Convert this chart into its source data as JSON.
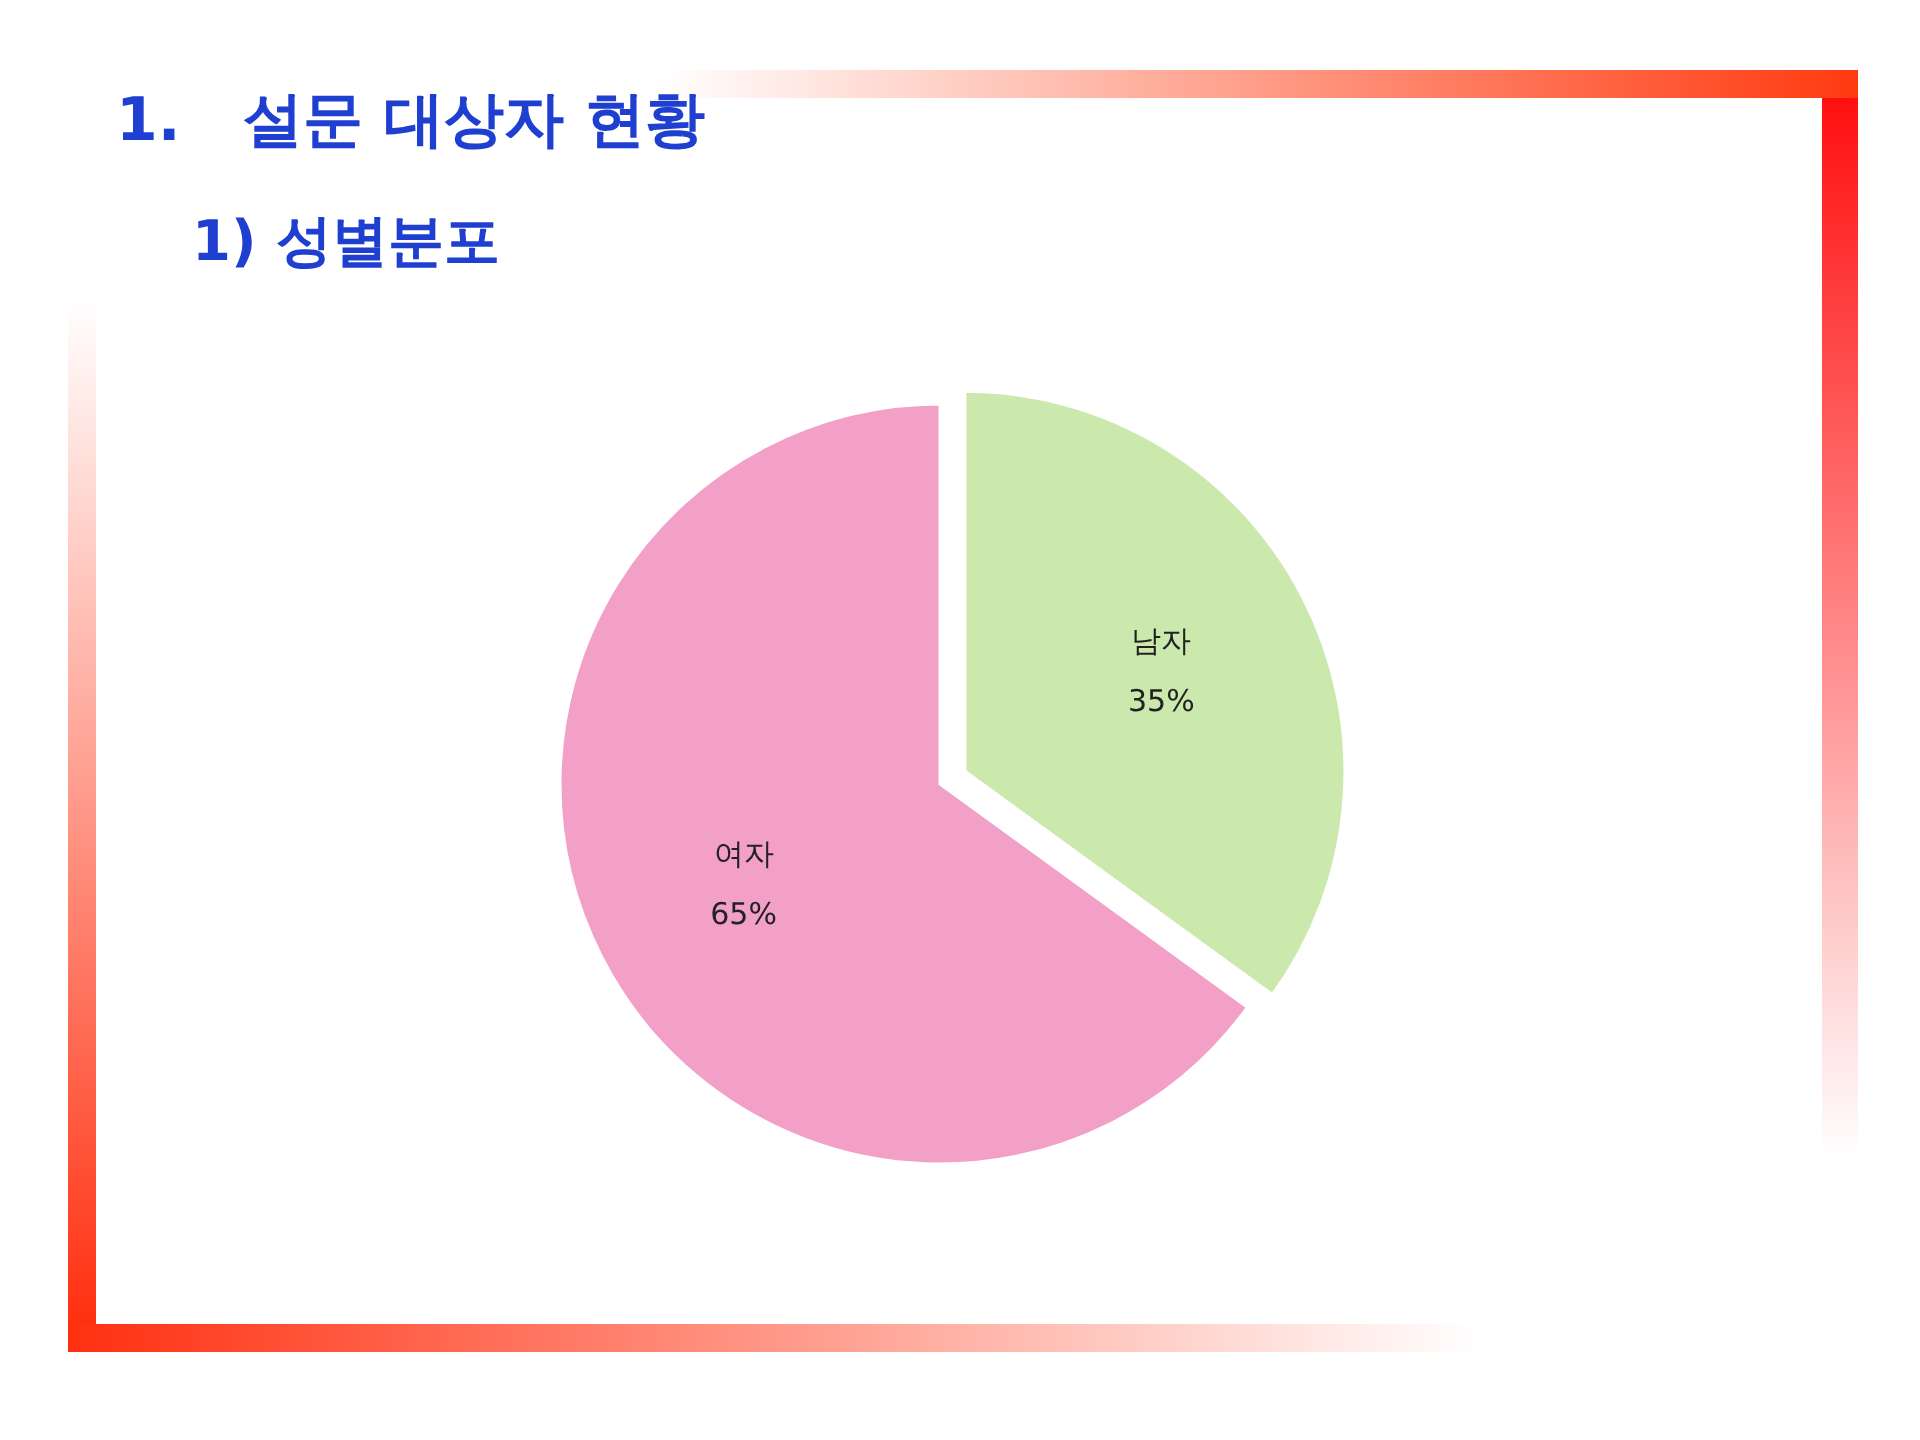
{
  "chart_data": {
    "type": "pie",
    "title": "1.   설문 대상자 현황",
    "subtitle": "1) 성별분포",
    "categories": [
      "남자",
      "여자"
    ],
    "values": [
      35,
      65
    ],
    "colors": [
      "#cbe8ad",
      "#f3a0c8"
    ],
    "value_labels": [
      "35%",
      "65%"
    ]
  }
}
